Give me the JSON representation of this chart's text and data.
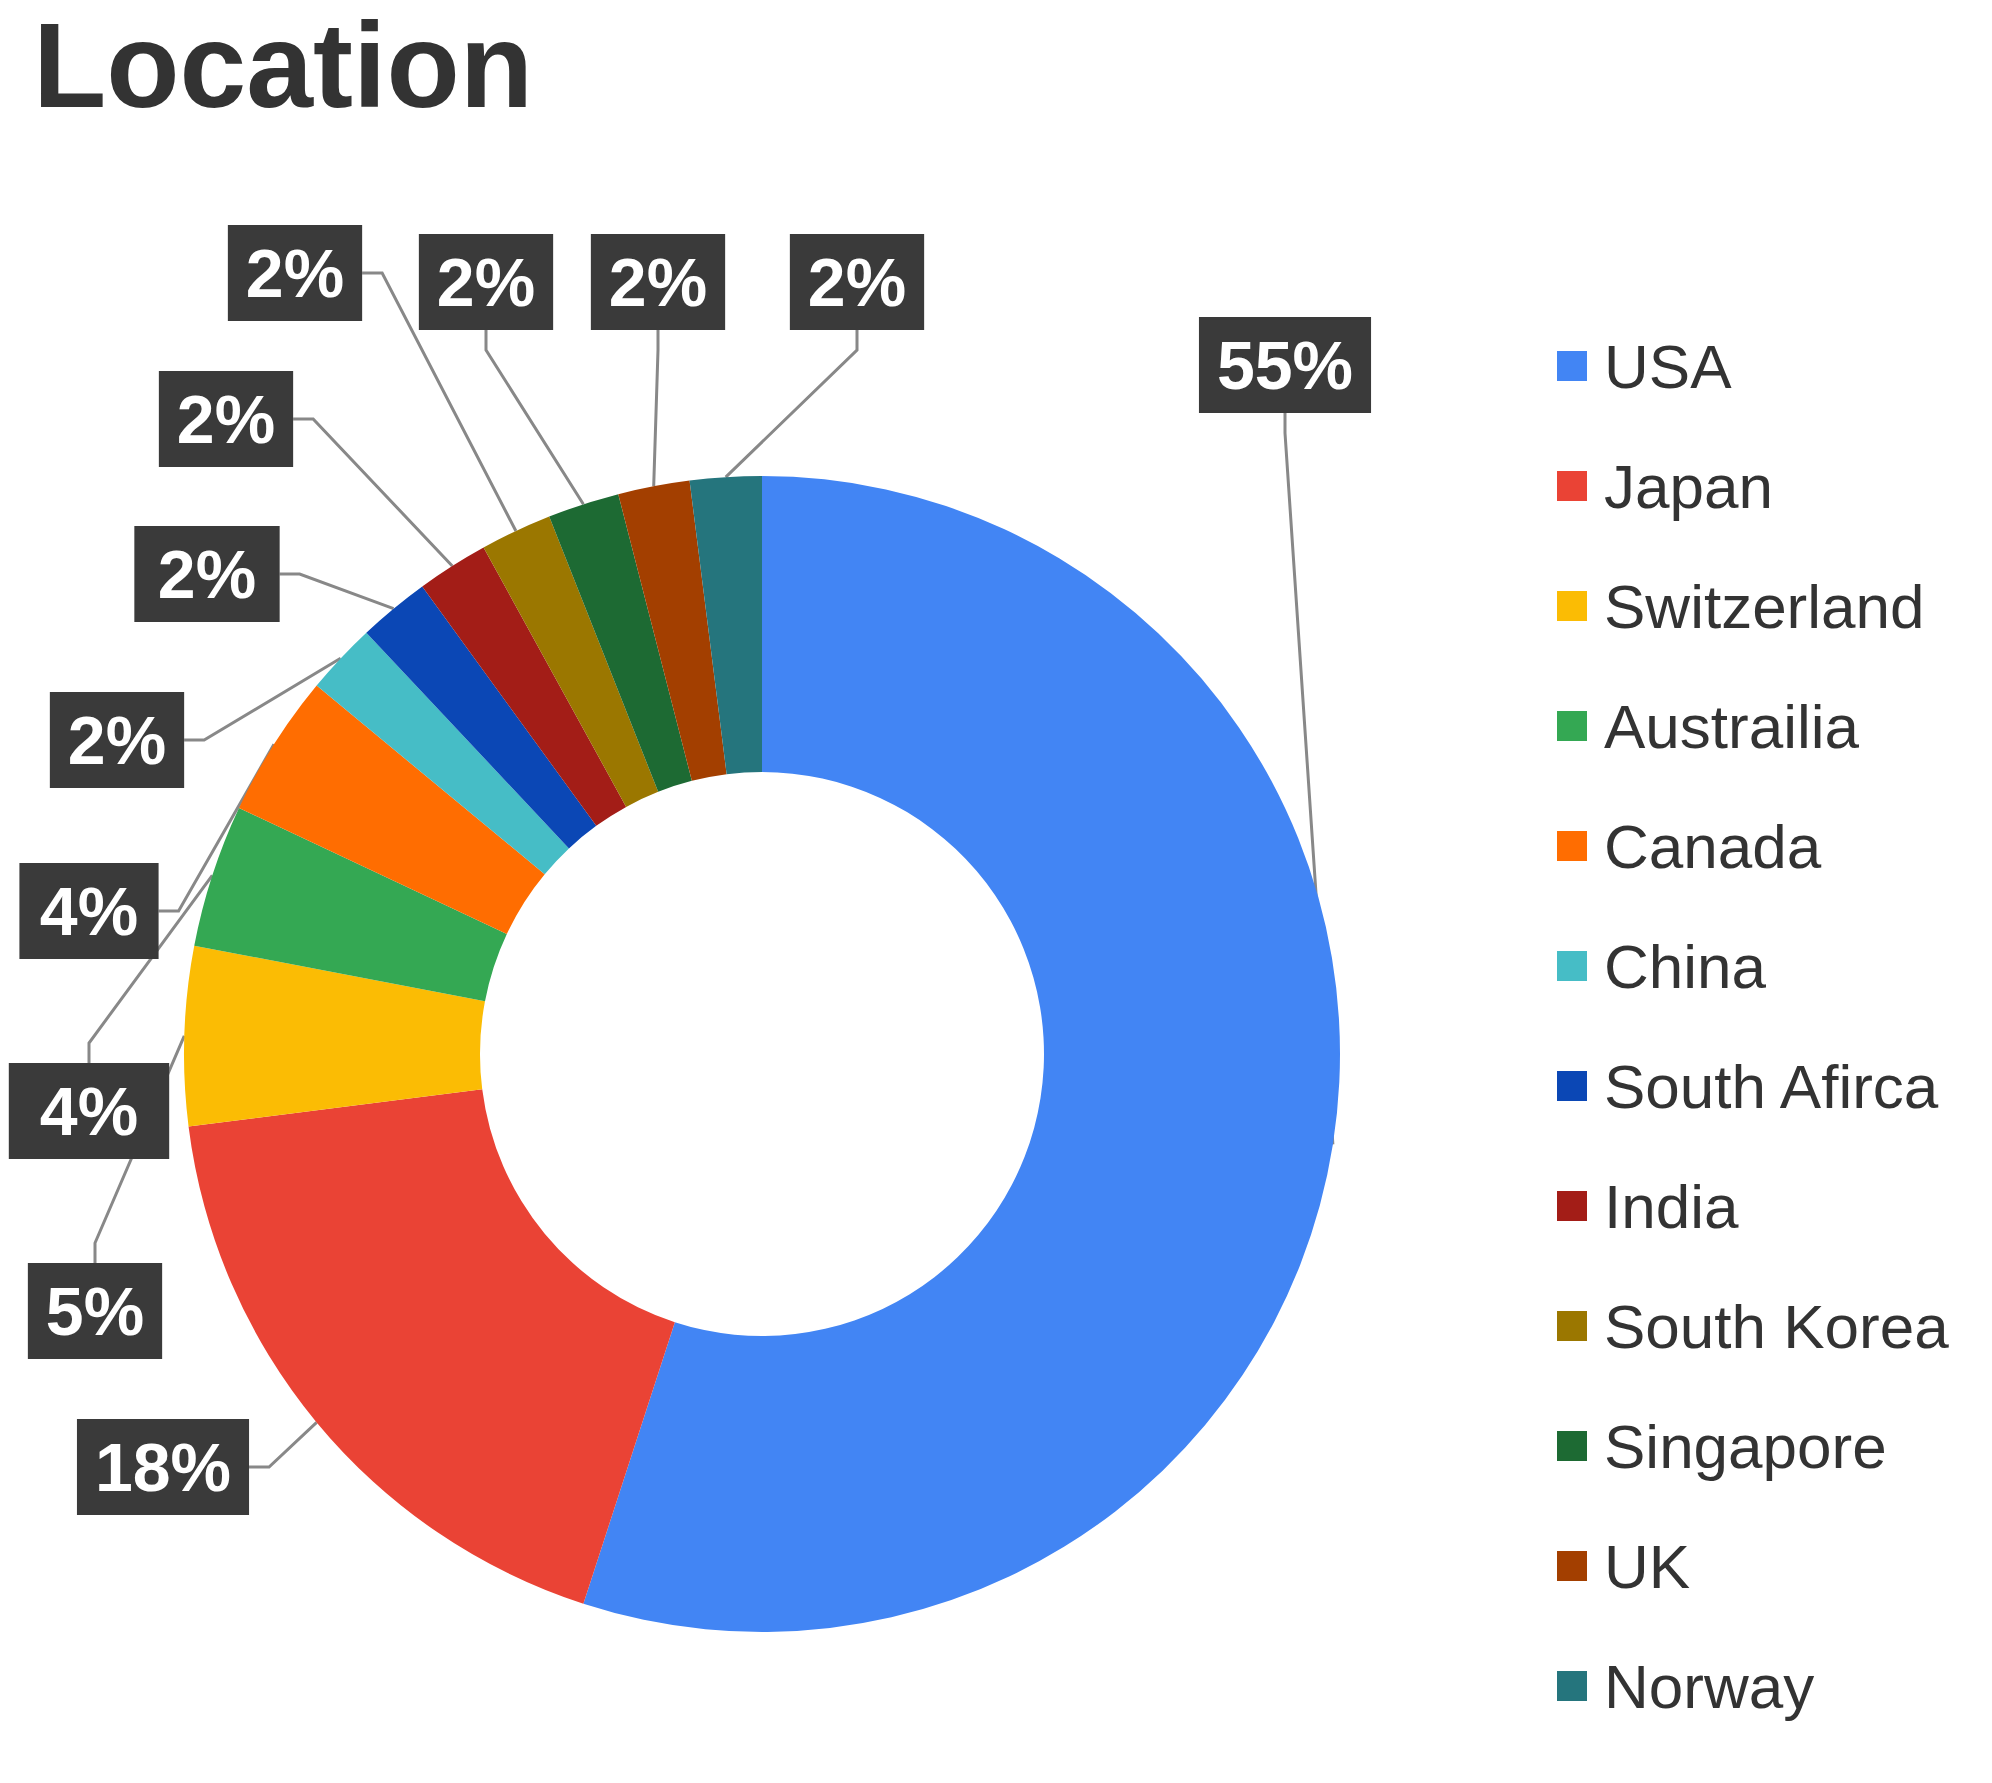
{
  "chart_data": {
    "type": "donut",
    "title": "Location",
    "categories": [
      "USA",
      "Japan",
      "Switzerland",
      "Austrailia",
      "Canada",
      "China",
      "South Afirca",
      "India",
      "South Korea",
      "Singapore",
      "UK",
      "Norway"
    ],
    "values": [
      55,
      18,
      5,
      4,
      4,
      2,
      2,
      2,
      2,
      2,
      2,
      2
    ],
    "colors": [
      "#4285f4",
      "#ea4335",
      "#fbbc04",
      "#34a853",
      "#ff6d01",
      "#46bdc6",
      "#0b47b5",
      "#a31d17",
      "#9b7700",
      "#1d6a33",
      "#a33f00",
      "#25757d"
    ],
    "value_labels": [
      "55%",
      "18%",
      "5%",
      "4%",
      "4%",
      "2%",
      "2%",
      "2%",
      "2%",
      "2%",
      "2%",
      "2%"
    ],
    "legend": "right"
  }
}
